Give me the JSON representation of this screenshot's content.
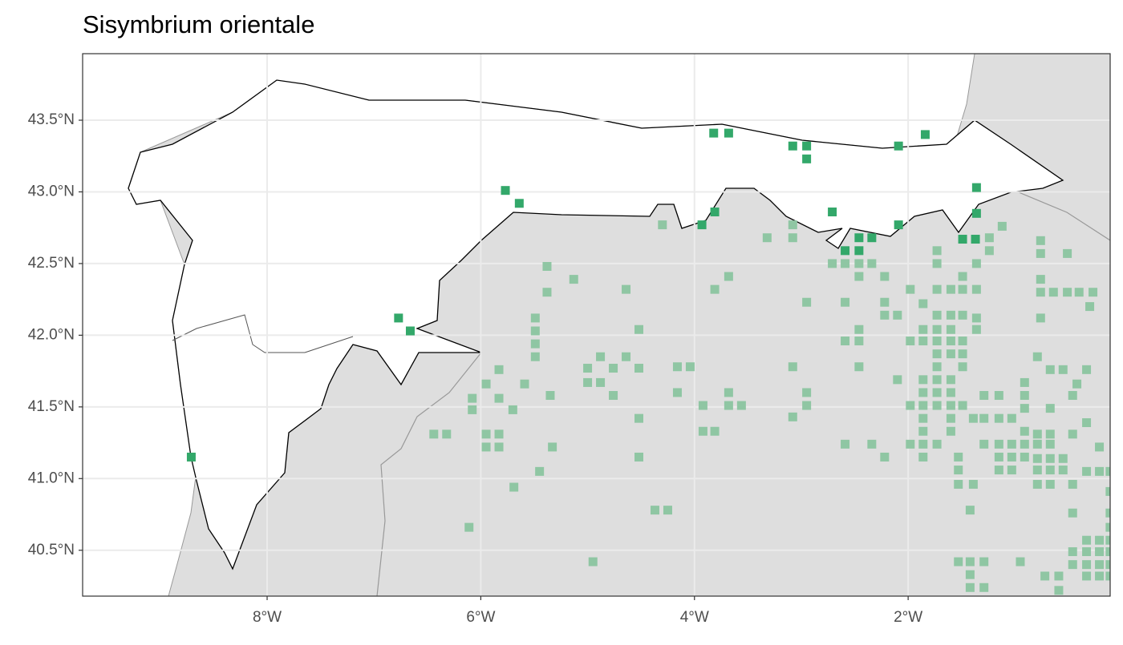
{
  "chart_data": {
    "type": "scatter",
    "title": "Sisymbrium orientale",
    "xlim": [
      -9.727,
      -0.109
    ],
    "ylim": [
      40.18,
      43.964
    ],
    "xticks": [
      {
        "value": -8,
        "label": "8°W"
      },
      {
        "value": -6,
        "label": "6°W"
      },
      {
        "value": -4,
        "label": "4°W"
      },
      {
        "value": -2,
        "label": "2°W"
      }
    ],
    "yticks": [
      {
        "value": 40.5,
        "label": "40.5°N"
      },
      {
        "value": 41.0,
        "label": "41.0°N"
      },
      {
        "value": 41.5,
        "label": "41.5°N"
      },
      {
        "value": 42.0,
        "label": "42.0°N"
      },
      {
        "value": 42.5,
        "label": "42.5°N"
      },
      {
        "value": 43.0,
        "label": "43.0°N"
      },
      {
        "value": 43.5,
        "label": "43.5°N"
      }
    ],
    "grid": true,
    "series": [
      {
        "color": "#8fc6a3",
        "x": [
          -4.3,
          -3.32,
          -3.08,
          -3.08,
          -2.71,
          -2.59,
          -2.46,
          -2.34,
          -2.46,
          -2.22,
          -1.73,
          -1.24,
          -1.12,
          -1.24,
          -1.73,
          -1.36,
          -0.76,
          -0.76,
          -0.51,
          -5.38,
          -5.38,
          -5.13,
          -4.64,
          -3.68,
          -3.81,
          -2.95,
          -2.59,
          -2.22,
          -2.1,
          -2.22,
          -1.86,
          -1.98,
          -1.73,
          -1.6,
          -1.49,
          -1.36,
          -1.49,
          -0.76,
          -0.76,
          -0.64,
          -0.51,
          -0.4,
          -0.27,
          -0.3,
          -0.76,
          -1.36,
          -1.36,
          -5.49,
          -5.49,
          -5.49,
          -5.49,
          -4.52,
          -2.46,
          -2.59,
          -2.46,
          -1.98,
          -1.86,
          -1.73,
          -1.6,
          -1.49,
          -1.86,
          -1.73,
          -1.6,
          -1.73,
          -1.6,
          -1.49,
          -1.73,
          -1.6,
          -1.49,
          -4.88,
          -4.64,
          -5.0,
          -4.76,
          -4.52,
          -4.16,
          -4.04,
          -5.0,
          -4.88,
          -4.76,
          -2.46,
          -1.73,
          -1.49,
          -1.86,
          -1.73,
          -1.6,
          -1.86,
          -1.73,
          -1.6,
          -0.79,
          -0.67,
          -0.55,
          -2.1,
          -5.83,
          -5.95,
          -5.59,
          -6.08,
          -5.83,
          -5.35,
          -4.16,
          -3.68,
          -2.95,
          -2.95,
          -3.56,
          -3.68,
          -3.92,
          -1.98,
          -1.86,
          -1.73,
          -1.6,
          -1.49,
          -1.29,
          -1.15,
          -0.91,
          -0.91,
          -0.42,
          -0.33,
          -0.46,
          -6.08,
          -5.7,
          -3.08,
          -4.52,
          -1.86,
          -1.6,
          -1.39,
          -1.29,
          -1.15,
          -1.03,
          -0.91,
          -0.67,
          -6.44,
          -6.32,
          -5.95,
          -5.83,
          -5.95,
          -5.83,
          -3.92,
          -3.81,
          -3.08,
          -2.59,
          -2.34,
          -1.98,
          -1.86,
          -1.73,
          -1.86,
          -1.6,
          -1.29,
          -1.15,
          -1.03,
          -0.91,
          -0.79,
          -0.67,
          -0.91,
          -0.79,
          -0.67,
          -0.46,
          -0.33,
          -0.21,
          -5.33,
          -2.22,
          -1.86,
          -1.53,
          -1.15,
          -1.03,
          -0.91,
          -0.79,
          -0.67,
          -0.55,
          -4.52,
          -1.53,
          -1.15,
          -1.03,
          -0.79,
          -0.67,
          -0.55,
          -0.33,
          -0.21,
          -0.11,
          -5.45,
          -5.69,
          -1.53,
          -1.39,
          -0.79,
          -0.67,
          -0.46,
          -0.11,
          -4.37,
          -4.25,
          -1.42,
          -0.46,
          -0.11,
          -6.11,
          -0.11,
          -4.95,
          -1.53,
          -1.42,
          -1.29,
          -0.95,
          -1.42,
          -1.42,
          -1.29,
          -0.33,
          -0.21,
          -0.11,
          -0.46,
          -0.33,
          -0.21,
          -0.11,
          -0.46,
          -0.33,
          -0.21,
          -0.11,
          -0.72,
          -0.59,
          -0.33,
          -0.21,
          -0.11,
          -0.59
        ],
        "values": [
          42.77,
          42.68,
          42.68,
          42.77,
          42.5,
          42.5,
          42.5,
          42.5,
          42.41,
          42.41,
          42.59,
          42.68,
          42.76,
          42.59,
          42.5,
          42.5,
          42.66,
          42.57,
          42.57,
          42.48,
          42.3,
          42.39,
          42.32,
          42.41,
          42.32,
          42.23,
          42.23,
          42.23,
          42.14,
          42.14,
          42.22,
          42.32,
          42.32,
          42.32,
          42.32,
          42.32,
          42.41,
          42.39,
          42.3,
          42.3,
          42.3,
          42.3,
          42.3,
          42.2,
          42.12,
          42.12,
          42.04,
          42.12,
          42.03,
          41.94,
          41.85,
          42.04,
          42.04,
          41.96,
          41.96,
          41.96,
          41.96,
          41.96,
          41.96,
          41.96,
          42.04,
          42.04,
          42.04,
          41.87,
          41.87,
          41.87,
          42.14,
          42.14,
          42.14,
          41.85,
          41.85,
          41.77,
          41.77,
          41.77,
          41.78,
          41.78,
          41.67,
          41.67,
          41.58,
          41.78,
          41.78,
          41.78,
          41.69,
          41.69,
          41.69,
          41.6,
          41.6,
          41.6,
          41.85,
          41.76,
          41.76,
          41.69,
          41.76,
          41.66,
          41.66,
          41.56,
          41.56,
          41.58,
          41.6,
          41.6,
          41.6,
          41.51,
          41.51,
          41.51,
          41.51,
          41.51,
          41.51,
          41.51,
          41.51,
          41.51,
          41.58,
          41.58,
          41.58,
          41.67,
          41.66,
          41.76,
          41.58,
          41.48,
          41.48,
          41.43,
          41.42,
          41.42,
          41.42,
          41.42,
          41.42,
          41.42,
          41.42,
          41.49,
          41.49,
          41.31,
          41.31,
          41.31,
          41.31,
          41.22,
          41.22,
          41.33,
          41.33,
          41.78,
          41.24,
          41.24,
          41.24,
          41.24,
          41.24,
          41.33,
          41.33,
          41.24,
          41.24,
          41.24,
          41.24,
          41.24,
          41.24,
          41.33,
          41.31,
          41.31,
          41.31,
          41.39,
          41.22,
          41.22,
          41.15,
          41.15,
          41.15,
          41.15,
          41.15,
          41.15,
          41.14,
          41.14,
          41.14,
          41.15,
          41.06,
          41.06,
          41.06,
          41.06,
          41.06,
          41.06,
          41.05,
          41.05,
          41.05,
          41.05,
          40.94,
          40.96,
          40.96,
          40.96,
          40.96,
          40.96,
          40.91,
          40.78,
          40.78,
          40.78,
          40.76,
          40.76,
          40.66,
          40.66,
          40.42,
          40.42,
          40.42,
          40.42,
          40.42,
          40.33,
          40.24,
          40.24,
          40.57,
          40.57,
          40.57,
          40.49,
          40.49,
          40.49,
          40.49,
          40.4,
          40.4,
          40.4,
          40.4,
          40.32,
          40.32,
          40.32,
          40.32,
          40.32,
          40.22
        ]
      },
      {
        "color": "#33a86a",
        "x": [
          -3.82,
          -3.68,
          -3.08,
          -2.95,
          -2.95,
          -2.09,
          -1.84,
          -5.77,
          -5.64,
          -1.36,
          -3.81,
          -3.93,
          -2.71,
          -2.09,
          -1.36,
          -2.46,
          -2.34,
          -1.49,
          -1.37,
          -2.59,
          -2.46,
          -6.77,
          -6.66,
          -8.71
        ],
        "values": [
          43.41,
          43.41,
          43.32,
          43.32,
          43.23,
          43.32,
          43.4,
          43.01,
          42.92,
          43.03,
          42.86,
          42.77,
          42.86,
          42.77,
          42.85,
          42.68,
          42.68,
          42.67,
          42.67,
          42.59,
          42.59,
          42.12,
          42.03,
          41.15
        ]
      }
    ]
  }
}
